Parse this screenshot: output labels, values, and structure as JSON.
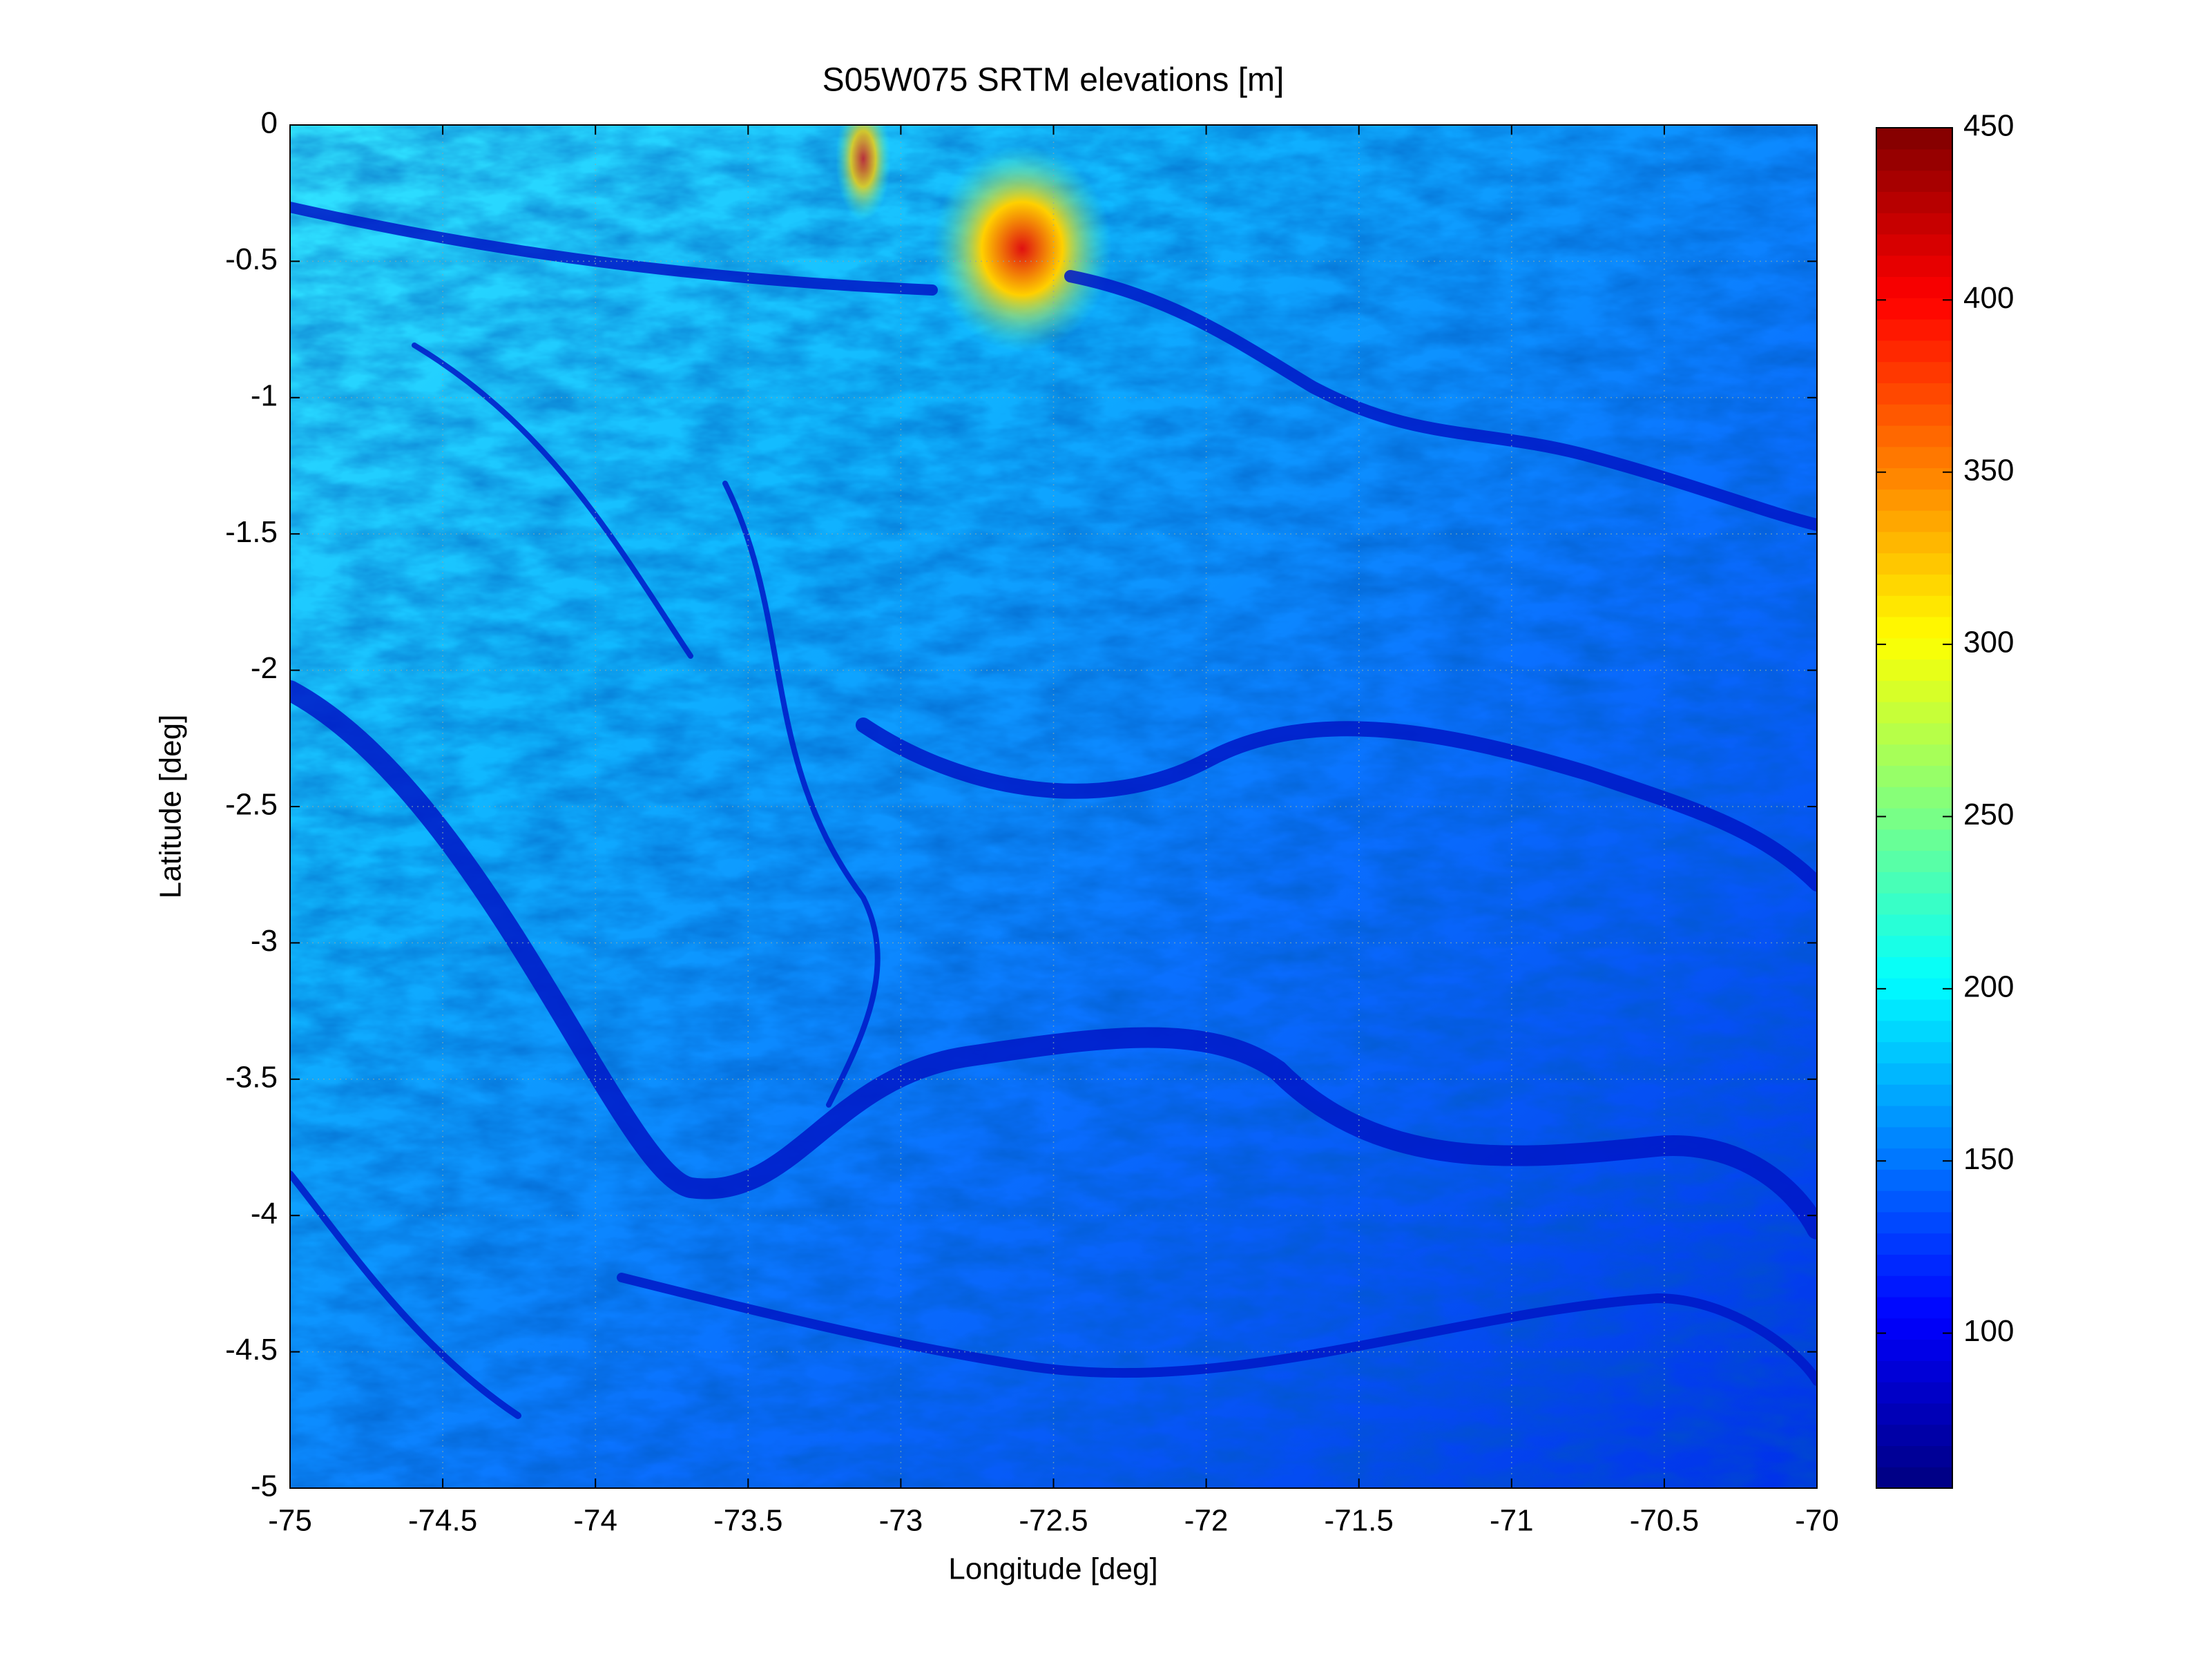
{
  "chart_data": {
    "type": "heatmap",
    "title": "S05W075 SRTM elevations [m]",
    "x_label": "Longitude [deg]",
    "y_label": "Latitude [deg]",
    "xlim": [
      -75,
      -70
    ],
    "xticks": [
      -75,
      -74.5,
      -74,
      -73.5,
      -73,
      -72.5,
      -72,
      -71.5,
      -71,
      -70.5,
      -70
    ],
    "ylim": [
      -5,
      0
    ],
    "yticks": [
      0,
      -0.5,
      -1,
      -1.5,
      -2,
      -2.5,
      -3,
      -3.5,
      -4,
      -4.5,
      -5
    ],
    "grid": true,
    "colormap": "jet",
    "clim": [
      55,
      450
    ],
    "colorbar_ticks": [
      100,
      150,
      200,
      250,
      300,
      350,
      400,
      450
    ]
  }
}
